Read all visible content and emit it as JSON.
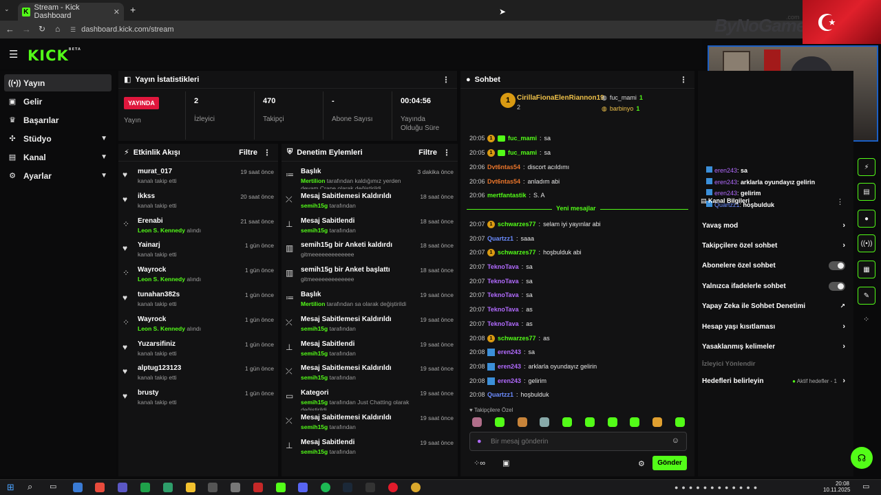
{
  "browser": {
    "tab_title": "Stream - Kick Dashboard",
    "url": "dashboard.kick.com/stream"
  },
  "brand": {
    "logo": "KICK",
    "logo_sup": "BETA",
    "accent": "#53fc18",
    "live_red": "#e0173d"
  },
  "watermark": {
    "text": "ByNoGame",
    "com": ".com"
  },
  "sidebar": {
    "items": [
      {
        "label": "Yayın",
        "icon": "broadcast-icon"
      },
      {
        "label": "Gelir",
        "icon": "revenue-icon"
      },
      {
        "label": "Başarılar",
        "icon": "trophy-icon"
      },
      {
        "label": "Stüdyo",
        "icon": "studio-icon"
      },
      {
        "label": "Kanal",
        "icon": "channel-icon"
      },
      {
        "label": "Ayarlar",
        "icon": "gear-icon"
      }
    ]
  },
  "stats": {
    "title": "Yayın İstatistikleri",
    "live_badge": "YAYINDA",
    "live_label": "Yayın",
    "viewers_value": "2",
    "viewers_label": "İzleyici",
    "followers_value": "470",
    "followers_label": "Takipçi",
    "subs_value": "-",
    "subs_label": "Abone Sayısı",
    "duration_value": "00:04:56",
    "duration_label": "Yayında Olduğu Süre"
  },
  "activity": {
    "title": "Etkinlik Akışı",
    "filter": "Filtre",
    "items": [
      {
        "name": "murat_017",
        "sub": "kanalı takip etti",
        "time": "19 saat önce"
      },
      {
        "name": "ikkss",
        "sub": "kanalı takip etti",
        "time": "20 saat önce"
      },
      {
        "name": "Erenabi",
        "sub_hl": "Leon S. Kennedy",
        "sub": "alındı",
        "time": "21 saat önce"
      },
      {
        "name": "Yainarj",
        "sub": "kanalı takip etti",
        "time": "1 gün önce"
      },
      {
        "name": "Wayrock",
        "sub_hl": "Leon S. Kennedy",
        "sub": "alındı",
        "time": "1 gün önce"
      },
      {
        "name": "tunahan382s",
        "sub": "kanalı takip etti",
        "time": "1 gün önce"
      },
      {
        "name": "Wayrock",
        "sub_hl": "Leon S. Kennedy",
        "sub": "alındı",
        "time": "1 gün önce"
      },
      {
        "name": "Yuzarsifiniz",
        "sub": "kanalı takip etti",
        "time": "1 gün önce"
      },
      {
        "name": "alptug123123",
        "sub": "kanalı takip etti",
        "time": "1 gün önce"
      },
      {
        "name": "brusty",
        "sub": "kanalı takip etti",
        "time": "1 gün önce"
      }
    ]
  },
  "moderation": {
    "title": "Denetim Eylemleri",
    "filter": "Filtre",
    "items": [
      {
        "name": "Başlık",
        "sub_hl": "Mertilion",
        "sub": "tarafından kaldığımız yerden devam Crane olarak değiştirildi",
        "time": "3 dakika önce"
      },
      {
        "name": "Mesaj Sabitlemesi Kaldırıldı",
        "sub_hl": "semih15g",
        "sub": "tarafından",
        "time": "18 saat önce"
      },
      {
        "name": "Mesaj Sabitlendi",
        "sub_hl": "semih15g",
        "sub": "tarafından",
        "time": "18 saat önce"
      },
      {
        "name": "semih15g bir Anketi kaldırdı",
        "sub": "gitmeeeeeeeeeeeee",
        "time": "18 saat önce"
      },
      {
        "name": "semih15g bir Anket başlattı",
        "sub": "gitmeeeeeeeeeeeee",
        "time": "18 saat önce"
      },
      {
        "name": "Başlık",
        "sub_hl": "Mertilion",
        "sub": "tarafından sa olarak değiştirildi",
        "time": "19 saat önce"
      },
      {
        "name": "Mesaj Sabitlemesi Kaldırıldı",
        "sub_hl": "semih15g",
        "sub": "tarafından",
        "time": "19 saat önce"
      },
      {
        "name": "Mesaj Sabitlendi",
        "sub_hl": "semih15g",
        "sub": "tarafından",
        "time": "19 saat önce"
      },
      {
        "name": "Mesaj Sabitlemesi Kaldırıldı",
        "sub_hl": "semih15g",
        "sub": "tarafından",
        "time": "19 saat önce"
      },
      {
        "name": "Kategori",
        "sub_hl": "semih15g",
        "sub": "tarafından Just Chatting olarak değiştirildi",
        "time": "19 saat önce"
      },
      {
        "name": "Mesaj Sabitlemesi Kaldırıldı",
        "sub_hl": "semih15g",
        "sub": "tarafından",
        "time": "19 saat önce"
      },
      {
        "name": "Mesaj Sabitlendi",
        "sub_hl": "semih15g",
        "sub": "tarafından",
        "time": "19 saat önce"
      }
    ]
  },
  "chat": {
    "title": "Sohbet",
    "top_gifter": "CirillaFionaElenRiannon19",
    "top_gifter_count": "2",
    "gifter2": "fuc_mami",
    "gifter2_count": "1",
    "gifter3": "barbinyo",
    "gifter3_count": "1",
    "new_messages": "Yeni mesajlar",
    "messages": [
      {
        "time": "20:05",
        "user": "fuc_mami",
        "color": "#53fc18",
        "badges": "fg",
        "text": "sa"
      },
      {
        "time": "20:05",
        "user": "fuc_mami",
        "color": "#53fc18",
        "badges": "fg",
        "text": "sa"
      },
      {
        "time": "20:06",
        "user": "Dvt6ntas54",
        "color": "#e8742a",
        "badges": "",
        "text": "discort acıldımı"
      },
      {
        "time": "20:06",
        "user": "Dvt6ntas54",
        "color": "#e8742a",
        "badges": "",
        "text": "anladım abi"
      },
      {
        "time": "20:06",
        "user": "mertfantastik",
        "color": "#53fc18",
        "badges": "",
        "text": "S. A"
      },
      {
        "time": "20:07",
        "user": "schwarzes77",
        "color": "#53fc18",
        "badges": "f",
        "text": "selam iyi yayınlar abi"
      },
      {
        "time": "20:07",
        "user": "Quartzz1",
        "color": "#6b8cff",
        "badges": "",
        "text": "saaa"
      },
      {
        "time": "20:07",
        "user": "schwarzes77",
        "color": "#53fc18",
        "badges": "f",
        "text": "hoşbulduk abi"
      },
      {
        "time": "20:07",
        "user": "TeknoTava",
        "color": "#b26bff",
        "badges": "",
        "text": "sa"
      },
      {
        "time": "20:07",
        "user": "TeknoTava",
        "color": "#b26bff",
        "badges": "",
        "text": "sa"
      },
      {
        "time": "20:07",
        "user": "TeknoTava",
        "color": "#b26bff",
        "badges": "",
        "text": "sa"
      },
      {
        "time": "20:07",
        "user": "TeknoTava",
        "color": "#b26bff",
        "badges": "",
        "text": "as"
      },
      {
        "time": "20:07",
        "user": "TeknoTava",
        "color": "#b26bff",
        "badges": "",
        "text": "as"
      },
      {
        "time": "20:08",
        "user": "schwarzes77",
        "color": "#53fc18",
        "badges": "f",
        "text": "as"
      },
      {
        "time": "20:08",
        "user": "eren243",
        "color": "#b26bff",
        "badges": "b",
        "text": "sa"
      },
      {
        "time": "20:08",
        "user": "eren243",
        "color": "#b26bff",
        "badges": "b",
        "text": "arklarla oyundayız gelirin"
      },
      {
        "time": "20:08",
        "user": "eren243",
        "color": "#b26bff",
        "badges": "b",
        "text": "gelirim"
      },
      {
        "time": "20:08",
        "user": "Quartzz1",
        "color": "#6b8cff",
        "badges": "",
        "text": "hoşbulduk"
      }
    ],
    "emote_label": "Takipçilere Özel",
    "input_placeholder": "Bir mesaj gönderin",
    "send_label": "Gönder"
  },
  "overlay_chat": [
    {
      "user": "eren243",
      "text": "sa"
    },
    {
      "user": "eren243",
      "text": "arklarla oyundayız gelirin"
    },
    {
      "user": "eren243",
      "text": "gelirim"
    },
    {
      "user": "Quartzz1",
      "text": "hoşbulduk"
    }
  ],
  "settings": {
    "title": "Kanal Bilgileri",
    "rows": [
      {
        "label": "Yavaş mod",
        "kind": "chevron"
      },
      {
        "label": "Takipçilere özel sohbet",
        "kind": "chevron"
      },
      {
        "label": "Abonelere özel sohbet",
        "kind": "toggle"
      },
      {
        "label": "Yalnızca ifadelerle sohbet",
        "kind": "toggle"
      },
      {
        "label": "Yapay Zeka ile Sohbet Denetimi",
        "kind": "external"
      },
      {
        "label": "Hesap yaşı kısıtlaması",
        "kind": "chevron"
      },
      {
        "label": "Yasaklanmış kelimeler",
        "kind": "chevron"
      }
    ],
    "viewer_section": "İzleyici Yönlendir",
    "goals_label": "Hedefleri belirleyin",
    "goals_status": "Aktif hedefler - 1"
  },
  "taskbar": {
    "time": "20:08",
    "date": "10.11.2025"
  }
}
